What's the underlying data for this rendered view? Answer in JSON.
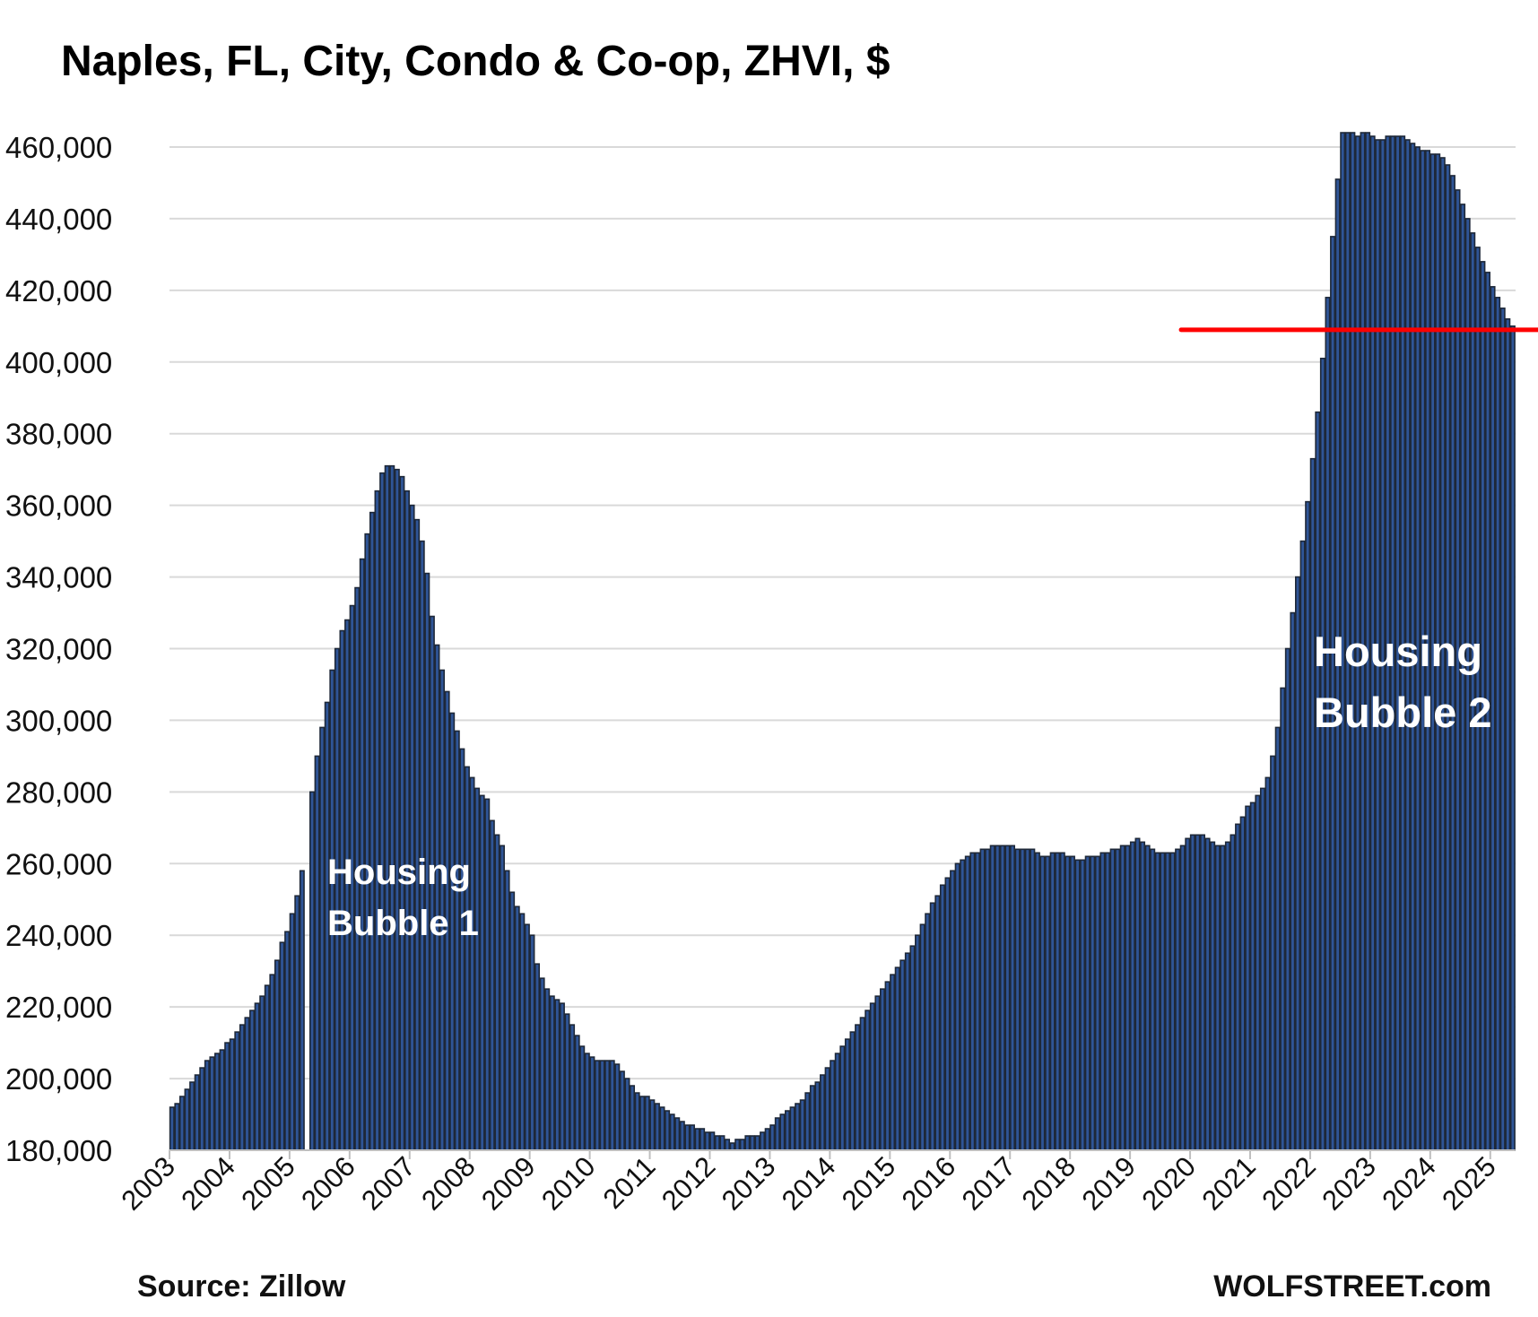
{
  "chart_data": {
    "type": "bar",
    "title": "Naples, FL, City, Condo & Co-op, ZHVI, $",
    "xlabel": "",
    "ylabel": "",
    "ylim": [
      180000,
      460000
    ],
    "yticks": [
      180000,
      200000,
      220000,
      240000,
      260000,
      280000,
      300000,
      320000,
      340000,
      360000,
      380000,
      400000,
      420000,
      440000,
      460000
    ],
    "ytick_labels": [
      "180,000",
      "200,000",
      "220,000",
      "240,000",
      "260,000",
      "280,000",
      "300,000",
      "320,000",
      "340,000",
      "360,000",
      "380,000",
      "400,000",
      "420,000",
      "440,000",
      "460,000"
    ],
    "xtick_labels": [
      "2003",
      "2004",
      "2005",
      "2006",
      "2007",
      "2008",
      "2009",
      "2010",
      "2011",
      "2012",
      "2013",
      "2014",
      "2015",
      "2016",
      "2017",
      "2018",
      "2019",
      "2020",
      "2021",
      "2022",
      "2023",
      "2024",
      "2025"
    ],
    "start": "2003-01",
    "frequency": "monthly",
    "grid": true,
    "values_thousands": [
      192,
      193,
      195,
      197,
      199,
      201,
      203,
      205,
      206,
      207,
      208,
      210,
      211,
      213,
      215,
      217,
      219,
      221,
      223,
      226,
      229,
      233,
      238,
      241,
      246,
      251,
      258,
      null,
      280,
      290,
      298,
      305,
      314,
      320,
      325,
      328,
      332,
      337,
      345,
      352,
      358,
      364,
      369,
      371,
      371,
      370,
      368,
      364,
      360,
      356,
      350,
      341,
      329,
      321,
      314,
      308,
      302,
      297,
      292,
      287,
      284,
      281,
      279,
      278,
      272,
      268,
      265,
      258,
      252,
      248,
      246,
      243,
      240,
      232,
      228,
      225,
      223,
      222,
      221,
      218,
      215,
      212,
      209,
      207,
      206,
      205,
      205,
      205,
      205,
      204,
      202,
      200,
      198,
      196,
      195,
      195,
      194,
      193,
      192,
      191,
      190,
      189,
      188,
      187,
      187,
      186,
      186,
      185,
      185,
      184,
      184,
      183,
      182,
      183,
      183,
      184,
      184,
      184,
      185,
      186,
      187,
      189,
      190,
      191,
      192,
      193,
      194,
      196,
      198,
      199,
      201,
      203,
      205,
      207,
      209,
      211,
      213,
      215,
      217,
      219,
      221,
      223,
      225,
      227,
      229,
      231,
      233,
      235,
      237,
      240,
      243,
      246,
      249,
      251,
      254,
      256,
      258,
      260,
      261,
      262,
      263,
      263,
      264,
      264,
      265,
      265,
      265,
      265,
      265,
      264,
      264,
      264,
      264,
      263,
      262,
      262,
      263,
      263,
      263,
      262,
      262,
      261,
      261,
      262,
      262,
      262,
      263,
      263,
      264,
      264,
      265,
      265,
      266,
      267,
      266,
      265,
      264,
      263,
      263,
      263,
      263,
      264,
      265,
      267,
      268,
      268,
      268,
      267,
      266,
      265,
      265,
      266,
      268,
      271,
      273,
      276,
      277,
      279,
      281,
      284,
      290,
      298,
      309,
      320,
      330,
      340,
      350,
      361,
      373,
      386,
      401,
      418,
      435,
      451,
      464,
      464,
      464,
      463,
      464,
      464,
      463,
      462,
      462,
      463,
      463,
      463,
      463,
      462,
      461,
      460,
      459,
      459,
      458,
      458,
      457,
      455,
      452,
      448,
      444,
      440,
      436,
      432,
      428,
      425,
      421,
      418,
      415,
      412,
      410
    ],
    "reference_line": {
      "value": 409000,
      "from": "2020",
      "color": "#ff0000"
    },
    "annotations": [
      "Housing Bubble 1",
      "Housing Bubble 2"
    ],
    "annotation_lines": [
      [
        "Housing",
        "Bubble 1"
      ],
      [
        "Housing",
        "Bubble 2"
      ]
    ],
    "source": "Source: Zillow",
    "credit": "WOLFSTREET.com",
    "colors": {
      "bar_fill": "#2f5597",
      "bar_edge": "#1e2838",
      "grid": "#d9d9d9"
    }
  }
}
